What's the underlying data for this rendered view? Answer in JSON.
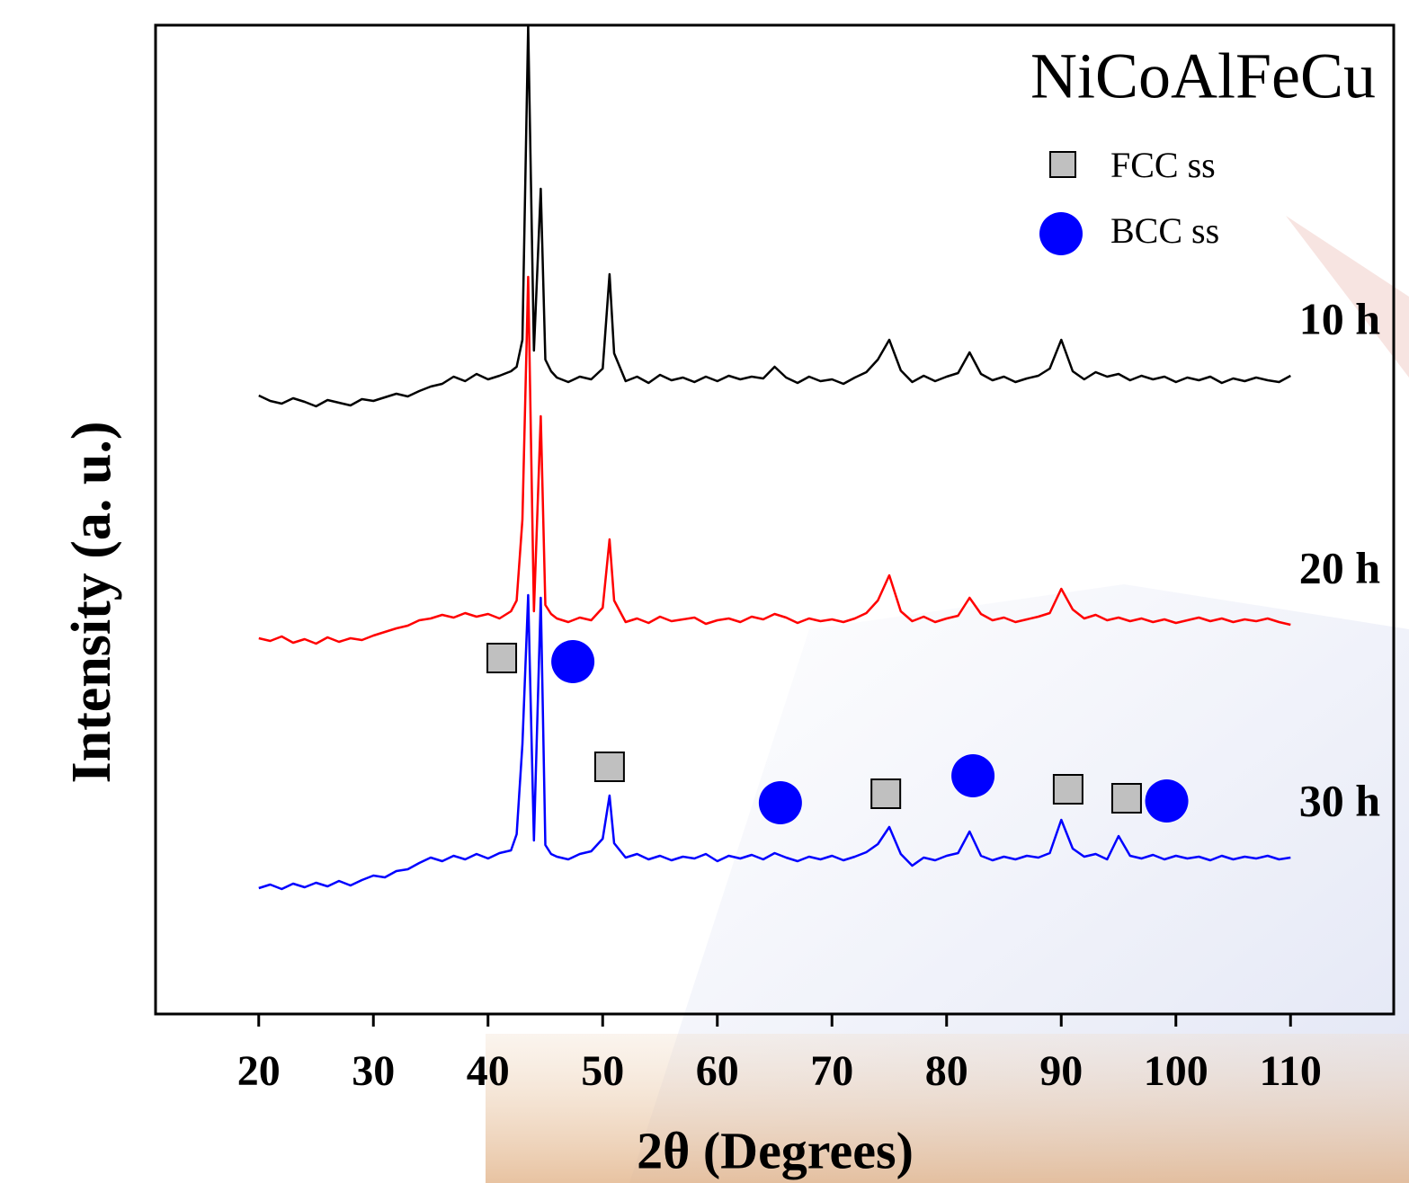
{
  "chart_data": {
    "type": "line",
    "title": "NiCoAlFeCu",
    "xlabel": "2θ (Degrees)",
    "ylabel": "Intensity (a. u.)",
    "xlim": [
      11,
      119
    ],
    "xticks": [
      20,
      30,
      40,
      50,
      60,
      70,
      80,
      90,
      100,
      110
    ],
    "ylim": [
      0,
      110
    ],
    "x": [
      20,
      21,
      22,
      23,
      24,
      25,
      26,
      27,
      28,
      29,
      30,
      31,
      32,
      33,
      34,
      35,
      36,
      37,
      38,
      39,
      40,
      41,
      42,
      42.5,
      43,
      43.5,
      44,
      44.6,
      45,
      45.5,
      46,
      47,
      48,
      49,
      50,
      50.6,
      51,
      52,
      53,
      54,
      55,
      56,
      57,
      58,
      59,
      60,
      61,
      62,
      63,
      64,
      65,
      66,
      67,
      68,
      69,
      70,
      71,
      72,
      73,
      74,
      75,
      76,
      77,
      78,
      79,
      80,
      81,
      82,
      83,
      84,
      85,
      86,
      87,
      88,
      89,
      90,
      91,
      92,
      93,
      94,
      95,
      96,
      97,
      98,
      99,
      100,
      101,
      102,
      103,
      104,
      105,
      106,
      107,
      108,
      109,
      110
    ],
    "series": [
      {
        "name": "10 h",
        "color": "#000000",
        "values": [
          68.8,
          68.2,
          67.9,
          68.5,
          68.1,
          67.6,
          68.3,
          68.0,
          67.7,
          68.4,
          68.2,
          68.6,
          69.0,
          68.7,
          69.3,
          69.8,
          70.1,
          70.9,
          70.4,
          71.2,
          70.6,
          71.0,
          71.5,
          72.0,
          75,
          110,
          73.8,
          91.8,
          72.8,
          71.5,
          70.8,
          70.3,
          70.9,
          70.6,
          71.8,
          82.3,
          73.5,
          70.4,
          70.9,
          70.2,
          71.1,
          70.5,
          70.8,
          70.3,
          70.9,
          70.4,
          71.0,
          70.6,
          70.9,
          70.7,
          72.0,
          70.8,
          70.2,
          70.9,
          70.4,
          70.6,
          70.1,
          70.8,
          71.4,
          72.8,
          75.0,
          71.6,
          70.3,
          71.0,
          70.4,
          70.9,
          71.3,
          73.6,
          71.2,
          70.5,
          70.9,
          70.3,
          70.7,
          71.0,
          71.8,
          75.0,
          71.5,
          70.6,
          71.4,
          70.9,
          71.2,
          70.5,
          71.0,
          70.6,
          70.9,
          70.3,
          70.8,
          70.5,
          70.9,
          70.2,
          70.7,
          70.4,
          70.8,
          70.5,
          70.3,
          71.0
        ]
      },
      {
        "name": "20 h",
        "color": "#ff0000",
        "values": [
          41.8,
          41.5,
          42.0,
          41.3,
          41.7,
          41.2,
          41.9,
          41.4,
          41.8,
          41.6,
          42.1,
          42.5,
          42.9,
          43.2,
          43.8,
          44.0,
          44.4,
          44.1,
          44.6,
          44.2,
          44.5,
          44.0,
          44.8,
          46.0,
          55,
          82,
          44.8,
          66.5,
          45.5,
          44.5,
          44.0,
          43.6,
          44.1,
          43.8,
          45.2,
          52.8,
          46.0,
          43.6,
          44.0,
          43.5,
          44.2,
          43.7,
          43.9,
          44.1,
          43.4,
          43.8,
          44.0,
          43.6,
          44.2,
          43.9,
          44.5,
          44.1,
          43.5,
          44.0,
          43.7,
          43.9,
          43.6,
          44.0,
          44.6,
          46.0,
          48.8,
          44.8,
          43.7,
          44.2,
          43.6,
          44.0,
          44.3,
          46.3,
          44.5,
          43.8,
          44.1,
          43.6,
          43.9,
          44.2,
          44.6,
          47.3,
          45.0,
          44.0,
          44.4,
          43.8,
          44.1,
          43.7,
          44.0,
          43.6,
          43.9,
          43.5,
          43.8,
          44.1,
          43.7,
          44.0,
          43.6,
          43.9,
          43.7,
          44.0,
          43.6,
          43.3
        ]
      },
      {
        "name": "30 h",
        "color": "#0000ff",
        "values": [
          14.0,
          14.4,
          13.9,
          14.5,
          14.1,
          14.6,
          14.2,
          14.8,
          14.3,
          14.9,
          15.4,
          15.2,
          15.9,
          16.1,
          16.8,
          17.4,
          17.0,
          17.6,
          17.2,
          17.8,
          17.3,
          17.9,
          18.2,
          20.0,
          30,
          46.6,
          19.3,
          46.3,
          18.8,
          17.8,
          17.5,
          17.2,
          17.8,
          18.1,
          19.5,
          24.3,
          19.0,
          17.4,
          17.8,
          17.2,
          17.6,
          17.1,
          17.5,
          17.3,
          17.8,
          17.0,
          17.6,
          17.3,
          17.7,
          17.2,
          17.9,
          17.4,
          17.0,
          17.5,
          17.2,
          17.6,
          17.1,
          17.5,
          18.0,
          18.9,
          20.8,
          17.8,
          16.5,
          17.4,
          17.1,
          17.6,
          17.9,
          20.3,
          17.6,
          17.1,
          17.5,
          17.2,
          17.6,
          17.4,
          17.9,
          21.6,
          18.4,
          17.5,
          17.8,
          17.2,
          19.8,
          17.6,
          17.3,
          17.7,
          17.2,
          17.6,
          17.3,
          17.5,
          17.1,
          17.6,
          17.2,
          17.5,
          17.3,
          17.6,
          17.2,
          17.4
        ]
      }
    ],
    "markers": [
      {
        "name": "FCC ss",
        "shape": "square",
        "color": "#c0c0c0",
        "x": [
          41.2,
          50.6,
          74.7,
          90.6,
          95.7
        ],
        "values": [
          39.6,
          27.5,
          24.5,
          25.0,
          24.0
        ]
      },
      {
        "name": "BCC ss",
        "shape": "circle",
        "color": "#0000ff",
        "x": [
          47.4,
          65.5,
          82.3,
          99.2
        ],
        "values": [
          39.2,
          23.5,
          26.5,
          23.7
        ]
      }
    ]
  }
}
